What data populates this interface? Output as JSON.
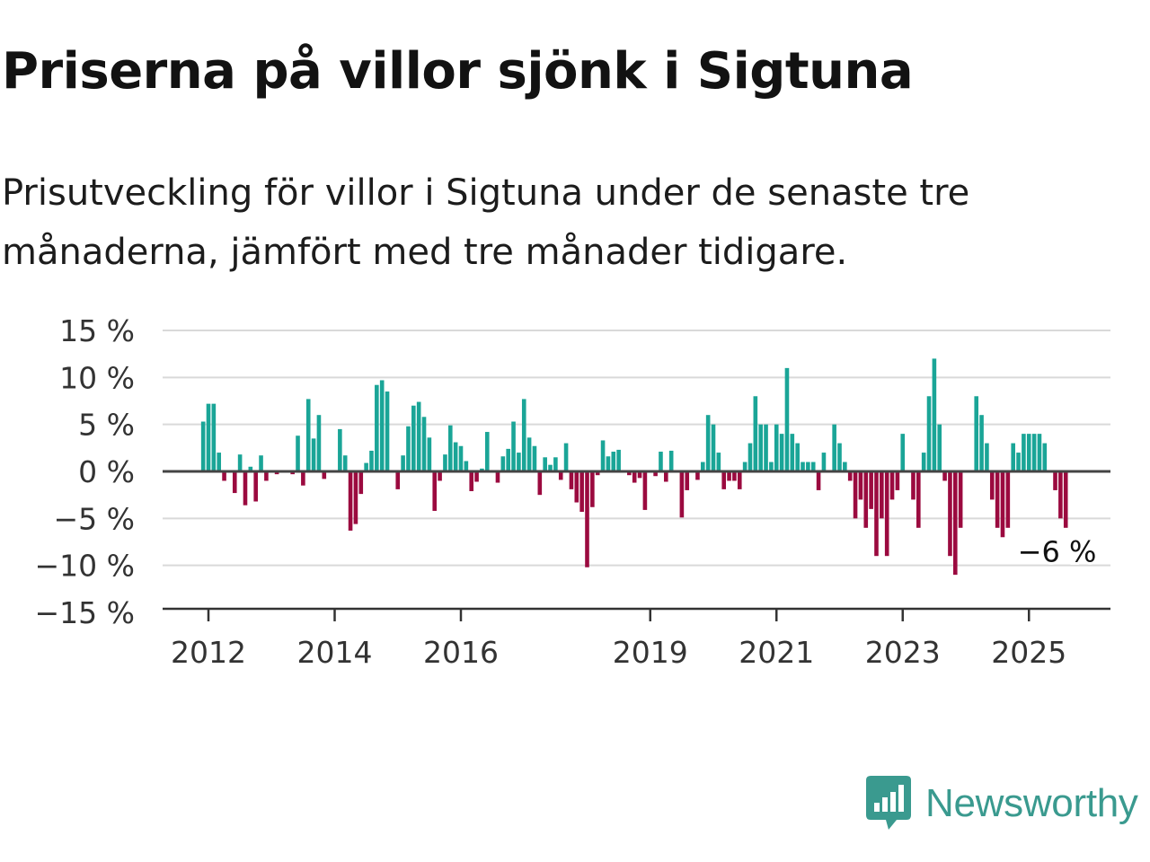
{
  "title": "Priserna på villor sjönk i Sigtuna",
  "subtitle": "Prisutveckling för villor i Sigtuna under de senaste tre månaderna, jämfört med tre månader tidigare.",
  "logo": {
    "text": "Newsworthy",
    "icon": "newsworthy-logo-icon",
    "color": "#3a9a8f"
  },
  "chart_data": {
    "type": "bar",
    "y_ticks": [
      {
        "value": 15,
        "label": "15 %"
      },
      {
        "value": 10,
        "label": "10 %"
      },
      {
        "value": 5,
        "label": "5 %"
      },
      {
        "value": 0,
        "label": "0 %"
      },
      {
        "value": -5,
        "label": "−5 %"
      },
      {
        "value": -10,
        "label": "−10 %"
      },
      {
        "value": -15,
        "label": "−15 %"
      }
    ],
    "ylim": [
      -15,
      15
    ],
    "grid": true,
    "x_ticks": [
      {
        "date": "2012-01",
        "label": "2012"
      },
      {
        "date": "2014-01",
        "label": "2014"
      },
      {
        "date": "2016-01",
        "label": "2016"
      },
      {
        "date": "2019-01",
        "label": "2019"
      },
      {
        "date": "2021-01",
        "label": "2021"
      },
      {
        "date": "2023-01",
        "label": "2023"
      },
      {
        "date": "2025-01",
        "label": "2025"
      }
    ],
    "positive_color": "#1aa597",
    "negative_color": "#9b0a3f",
    "annotation": {
      "date": "2025-07",
      "label": "−6 %"
    },
    "start": "2011-12",
    "end": "2025-07",
    "values": [
      5.3,
      7.2,
      7.2,
      2.0,
      -1.0,
      0,
      -2.3,
      1.8,
      -3.6,
      0.5,
      -3.2,
      1.7,
      -1.0,
      0,
      -0.3,
      0,
      0,
      -0.3,
      3.8,
      -1.5,
      7.7,
      3.5,
      6.0,
      -0.8,
      0,
      0,
      4.5,
      1.7,
      -6.3,
      -5.6,
      -2.4,
      0.9,
      2.2,
      9.2,
      9.7,
      8.5,
      0,
      -1.9,
      1.7,
      4.8,
      7.0,
      7.4,
      5.8,
      3.6,
      -4.2,
      -1.0,
      1.8,
      4.9,
      3.1,
      2.7,
      1.1,
      -2.1,
      -1.1,
      0.3,
      4.2,
      0,
      -1.2,
      1.6,
      2.4,
      5.3,
      2.0,
      7.7,
      3.6,
      2.7,
      -2.5,
      1.5,
      0.7,
      1.5,
      -0.9,
      3.0,
      -1.9,
      -3.3,
      -4.3,
      -10.2,
      -3.8,
      -0.4,
      3.3,
      1.6,
      2.1,
      2.3,
      0,
      -0.4,
      -1.2,
      -0.7,
      -4.1,
      0,
      -0.5,
      2.1,
      -1.1,
      2.2,
      0,
      -4.9,
      -2.0,
      0,
      -0.9,
      1.0,
      6.0,
      5.0,
      2.0,
      -1.9,
      -1.0,
      -1.0,
      -1.9,
      1.0,
      3.0,
      8.0,
      5.0,
      5.0,
      1.0,
      5.0,
      4.0,
      11.0,
      4.0,
      3.0,
      1.0,
      1.0,
      1.0,
      -2.0,
      2.0,
      0,
      5.0,
      3.0,
      1.0,
      -1.0,
      -5.0,
      -3.0,
      -6.0,
      -4.0,
      -9.0,
      -5.0,
      -9.0,
      -3.0,
      -2.0,
      4.0,
      0,
      -3.0,
      -6.0,
      2.0,
      8.0,
      12.0,
      5.0,
      -1.0,
      -9.0,
      -11.0,
      -6.0,
      0,
      0,
      8.0,
      6.0,
      3.0,
      -3.0,
      -6.0,
      -7.0,
      -6.0,
      3.0,
      2.0,
      4.0,
      4.0,
      4.0,
      4.0,
      3.0,
      0,
      -2.0,
      -5.0,
      -6.0
    ]
  }
}
